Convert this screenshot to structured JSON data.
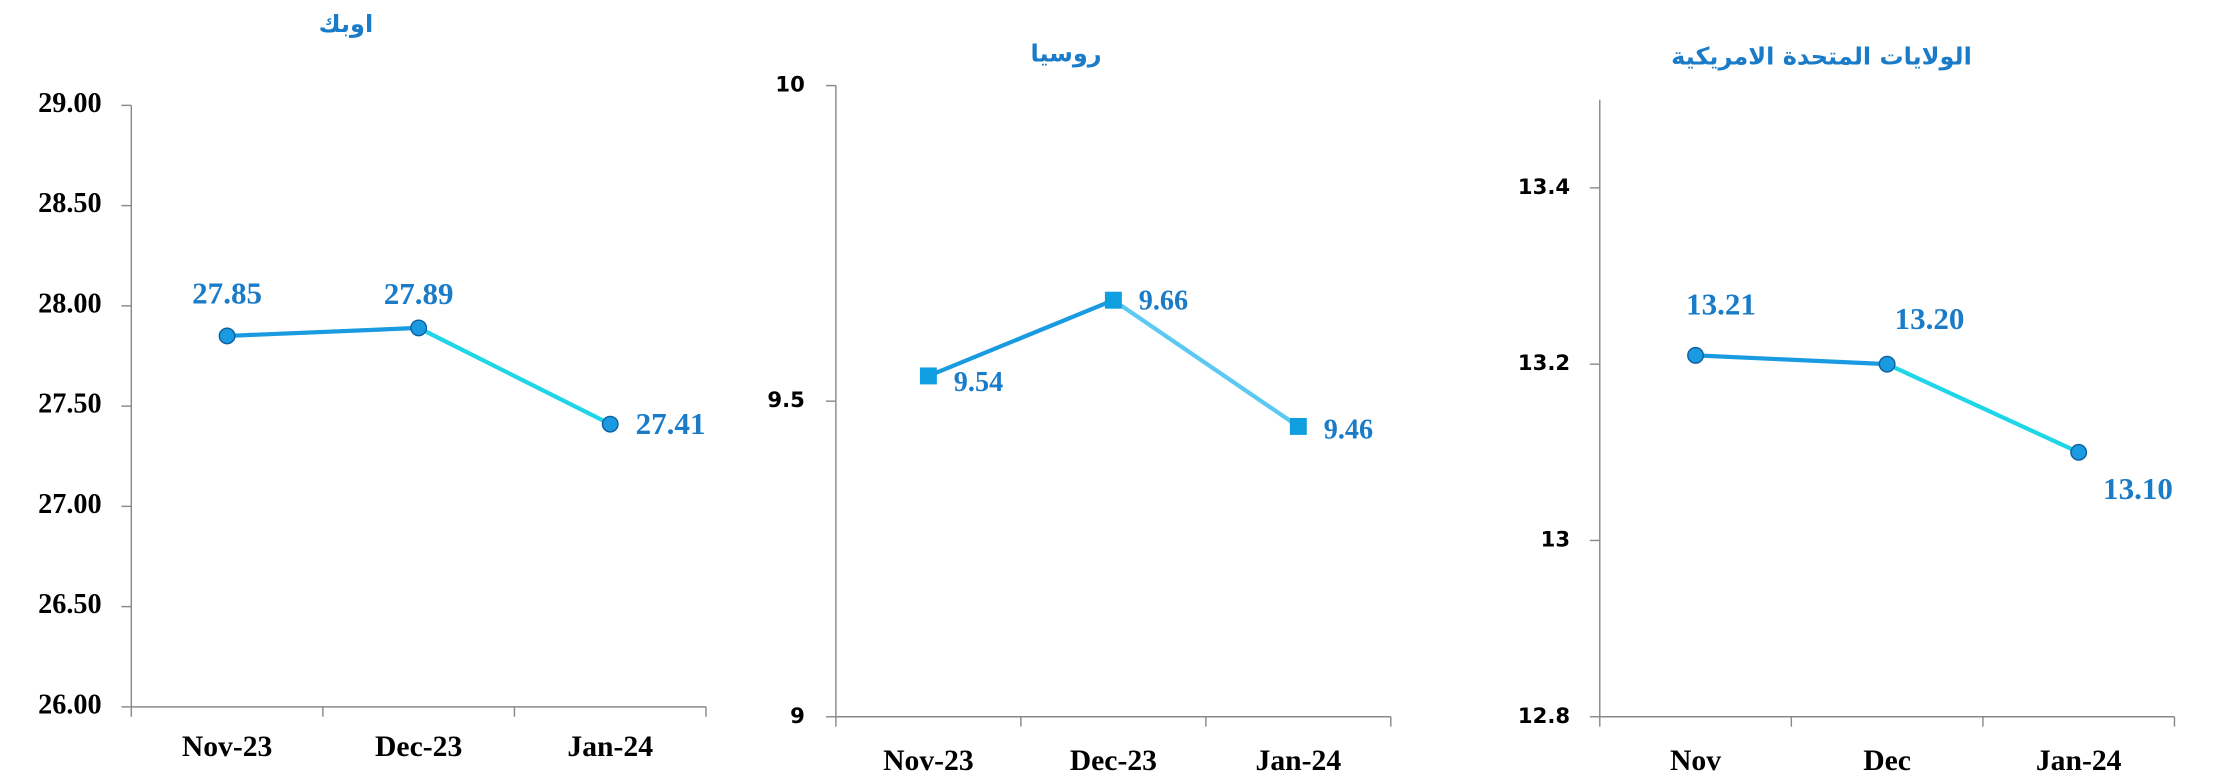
{
  "chart_data": [
    {
      "type": "line",
      "title": "اوبك",
      "categories": [
        "Nov-23",
        "Dec-23",
        "Jan-24"
      ],
      "values": [
        27.85,
        27.89,
        27.41
      ],
      "line_colors": [
        "#1a9ae0",
        "#1fd6e8"
      ],
      "marker": "circle",
      "marker_color": "#1a9ae0",
      "ylim": [
        26,
        29
      ],
      "yticks": [
        {
          "value": 26,
          "label": "26.00"
        },
        {
          "value": 26.5,
          "label": "26.50"
        },
        {
          "value": 27,
          "label": "27.00"
        },
        {
          "value": 27.5,
          "label": "27.50"
        },
        {
          "value": 28,
          "label": "28.00"
        },
        {
          "value": 28.5,
          "label": "28.50"
        },
        {
          "value": 29,
          "label": "29.00"
        }
      ]
    },
    {
      "type": "line",
      "title": "روسيا",
      "categories": [
        "Nov-23",
        "Dec-23",
        "Jan-24"
      ],
      "values": [
        9.54,
        9.66,
        9.46
      ],
      "line_colors": [
        "#1a9ae0",
        "#5cc9f2"
      ],
      "marker": "square",
      "marker_color": "#0f9ee0",
      "ylim": [
        9,
        10
      ],
      "yticks": [
        9,
        9.5,
        10
      ]
    },
    {
      "type": "line",
      "title": "الولايات المتحدة الامريكية",
      "categories": [
        "Nov",
        "Dec",
        "Jan-24"
      ],
      "values": [
        13.21,
        13.2,
        13.1
      ],
      "value_labels": [
        "13.21",
        "13.20",
        "13.10"
      ],
      "line_colors": [
        "#1a9ae0",
        "#1fd6e8"
      ],
      "marker": "circle",
      "marker_color": "#1a9ae0",
      "ylim": [
        12.8,
        13.5
      ],
      "yticks": [
        12.8,
        13,
        13.2,
        13.4
      ]
    }
  ]
}
